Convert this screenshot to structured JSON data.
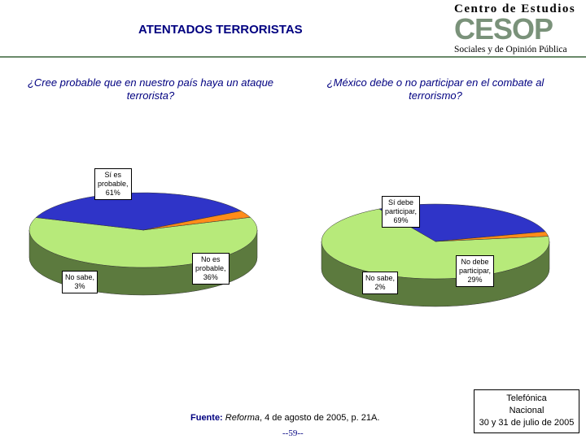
{
  "header": {
    "title": "ATENTADOS TERRORISTAS",
    "logo_line1": "Centro de Estudios",
    "logo_mark": "CESOP",
    "logo_line3": "Sociales y de Opinión Pública"
  },
  "colors": {
    "green": "#b7ea7a",
    "green_side": "#5c7a3e",
    "blue": "#2f34c8",
    "blue_side": "#1c1f6e",
    "orange": "#ff8c1a",
    "orange_side": "#b35a00",
    "brown": "#8b3a12",
    "brown_side": "#5a2408",
    "accent_text": "#000080"
  },
  "chart_data": [
    {
      "type": "pie",
      "title": "¿Cree probable que en nuestro país haya un ataque terrorista?",
      "categories": [
        "Sí es probable",
        "No es probable",
        "No sabe"
      ],
      "values": [
        61,
        36,
        3
      ],
      "labels": [
        {
          "line1": "Sí es",
          "line2": "probable,",
          "line3": "61%"
        },
        {
          "line1": "No es",
          "line2": "probable,",
          "line3": "36%"
        },
        {
          "line1": "No sabe,",
          "line2": "3%"
        }
      ]
    },
    {
      "type": "pie",
      "title": "¿México debe o no participar en el combate al terrorismo?",
      "categories": [
        "Sí debe participar",
        "No debe participar",
        "No sabe"
      ],
      "values": [
        69,
        29,
        2
      ],
      "labels": [
        {
          "line1": "Sí debe",
          "line2": "participar,",
          "line3": "69%"
        },
        {
          "line1": "No debe",
          "line2": "participar,",
          "line3": "29%"
        },
        {
          "line1": "No sabe,",
          "line2": "2%"
        }
      ]
    }
  ],
  "footer": {
    "source_label": "Fuente:",
    "source_pub": "Reforma",
    "source_rest": ", 4 de agosto de 2005, p. 21A.",
    "page_number": "--59--",
    "method_line1": "Telefónica",
    "method_line2": "Nacional",
    "method_line3": "30 y 31 de julio de 2005"
  }
}
